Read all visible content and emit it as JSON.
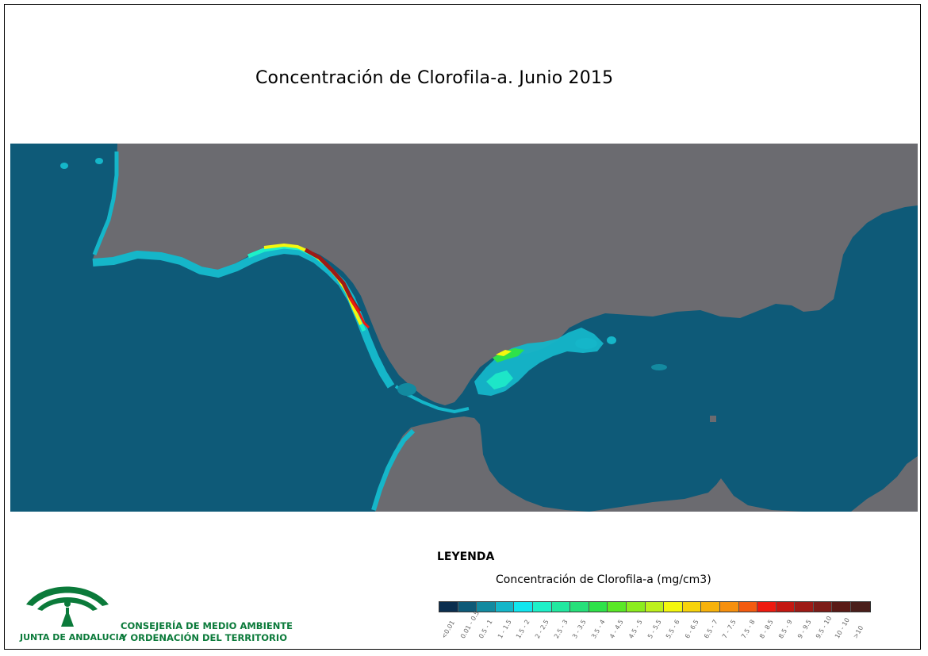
{
  "title": "Concentración de Clorofila-a. Junio 2015",
  "legend": {
    "heading": "LEYENDA",
    "subtitle": "Concentración de Clorofila-a (mg/cm3)",
    "classes": [
      {
        "label": "<0.01",
        "color": "#0b2e4f"
      },
      {
        "label": "0.01 - 0.5",
        "color": "#0e5a78"
      },
      {
        "label": "0.5 - 1",
        "color": "#138aa0"
      },
      {
        "label": "1 - 1.5",
        "color": "#15b6c9"
      },
      {
        "label": "1.5 - 2",
        "color": "#12e6ef"
      },
      {
        "label": "2 - 2.5",
        "color": "#1ef0c8"
      },
      {
        "label": "2.5 - 3",
        "color": "#22e8a0"
      },
      {
        "label": "3 - 3.5",
        "color": "#26e07a"
      },
      {
        "label": "3.5 - 4",
        "color": "#2ee24a"
      },
      {
        "label": "4 - 4.5",
        "color": "#5ae826"
      },
      {
        "label": "4.5 - 5",
        "color": "#8cec1e"
      },
      {
        "label": "5 - 5.5",
        "color": "#bdf01c"
      },
      {
        "label": "5.5 - 6",
        "color": "#f4f70e"
      },
      {
        "label": "6 - 6.5",
        "color": "#f7d30c"
      },
      {
        "label": "6.5 - 7",
        "color": "#f7b20c"
      },
      {
        "label": "7 - 7.5",
        "color": "#f6900e"
      },
      {
        "label": "7.5 - 8",
        "color": "#f35b10"
      },
      {
        "label": "8 - 8.5",
        "color": "#ee1a10"
      },
      {
        "label": "8.5 - 9",
        "color": "#c41812"
      },
      {
        "label": "9 - 9.5",
        "color": "#9e1a16"
      },
      {
        "label": "9.5 - 10",
        "color": "#7c1c18"
      },
      {
        "label": "10 - 10",
        "color": "#5a1a16"
      },
      {
        "label": ">10",
        "color": "#4a1e1a"
      }
    ]
  },
  "organization": {
    "mark": "JUNTA DE ANDALUCIA",
    "line1": "CONSEJERÍA DE MEDIO AMBIENTE",
    "line2": "Y ORDENACIÓN DEL TERRITORIO"
  },
  "map_colors": {
    "sea": "#0e5a78",
    "land": "#6b6b70"
  }
}
